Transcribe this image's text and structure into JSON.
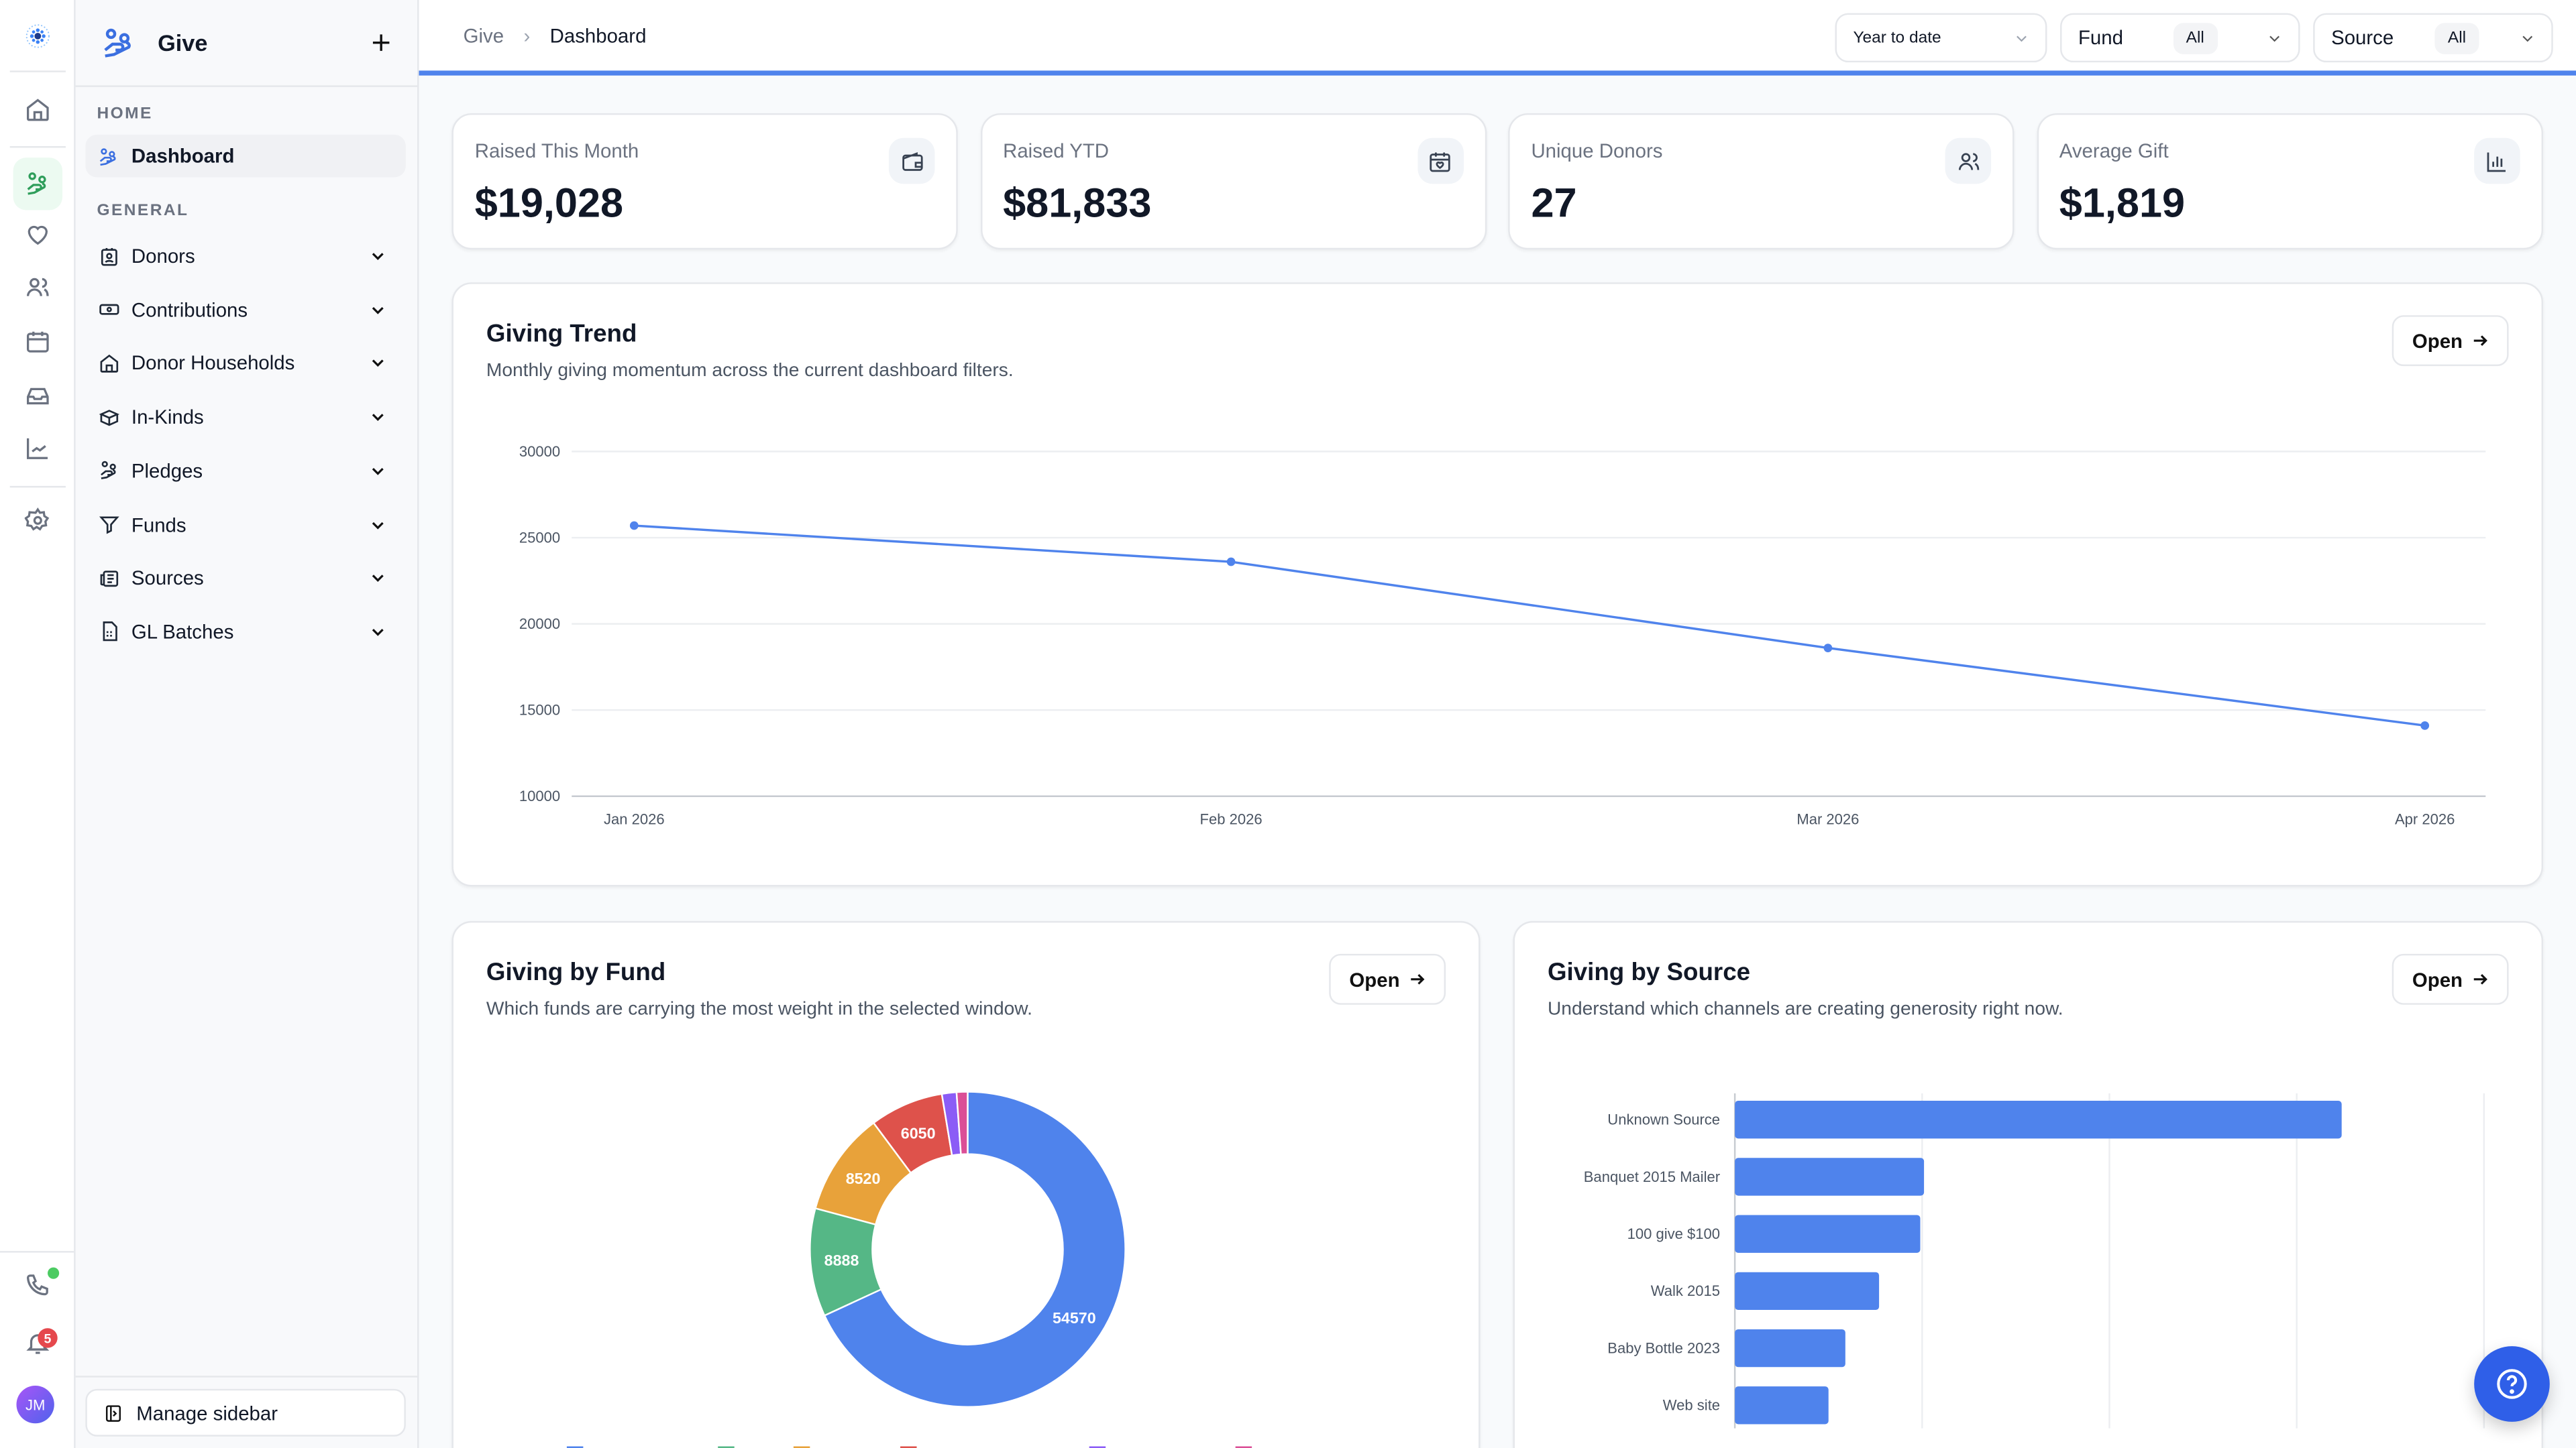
{
  "app": {
    "title": "Give",
    "initials": "JM",
    "notification_count": "5"
  },
  "sidebar": {
    "home_section": "HOME",
    "dashboard": "Dashboard",
    "general_section": "GENERAL",
    "items": [
      {
        "label": "Donors",
        "icon": "id-badge-icon"
      },
      {
        "label": "Contributions",
        "icon": "banknote-icon"
      },
      {
        "label": "Donor Households",
        "icon": "house-icon"
      },
      {
        "label": "In-Kinds",
        "icon": "box-icon"
      },
      {
        "label": "Pledges",
        "icon": "hand-heart-icon"
      },
      {
        "label": "Funds",
        "icon": "filter-icon"
      },
      {
        "label": "Sources",
        "icon": "newspaper-icon"
      },
      {
        "label": "GL Batches",
        "icon": "file-spreadsheet-icon"
      }
    ],
    "manage": "Manage sidebar"
  },
  "header": {
    "breadcrumb": [
      "Give",
      "Dashboard"
    ],
    "filters": {
      "period": "Year to date",
      "fund_label": "Fund",
      "fund_value": "All",
      "source_label": "Source",
      "source_value": "All"
    }
  },
  "kpis": [
    {
      "label": "Raised This Month",
      "value": "$19,028",
      "icon": "wallet-icon"
    },
    {
      "label": "Raised YTD",
      "value": "$81,833",
      "icon": "calendar-heart-icon"
    },
    {
      "label": "Unique Donors",
      "value": "27",
      "icon": "users-icon"
    },
    {
      "label": "Average Gift",
      "value": "$1,819",
      "icon": "bar-chart-icon"
    }
  ],
  "trend": {
    "title": "Giving Trend",
    "subtitle": "Monthly giving momentum across the current dashboard filters.",
    "open": "Open"
  },
  "fund": {
    "title": "Giving by Fund",
    "subtitle": "Which funds are carrying the most weight in the selected window.",
    "open": "Open"
  },
  "source": {
    "title": "Giving by Source",
    "subtitle": "Understand which channels are creating generosity right now.",
    "open": "Open"
  },
  "colors": {
    "accent": "#4f83ec",
    "green": "#55b786",
    "orange": "#e8a23a",
    "red": "#de524b",
    "purple": "#8b5cf6",
    "pink": "#db4f96"
  },
  "chart_data": [
    {
      "type": "line",
      "categories": [
        "Jan 2026",
        "Feb 2026",
        "Mar 2026",
        "Apr 2026"
      ],
      "values": [
        25700,
        23600,
        18600,
        14100
      ],
      "ylim": [
        10000,
        30000
      ],
      "yticks": [
        30000,
        25000,
        20000,
        15000,
        10000
      ],
      "grid": true
    },
    {
      "type": "pie",
      "donut": true,
      "values": [
        54570,
        8888,
        8520,
        6050,
        1200,
        900
      ],
      "labels": [
        "54570",
        "8888",
        "8520",
        "6050",
        "",
        ""
      ],
      "colors": [
        "#4f83ec",
        "#55b786",
        "#e8a23a",
        "#de524b",
        "#8b5cf6",
        "#db4f96"
      ]
    },
    {
      "type": "bar",
      "orientation": "horizontal",
      "categories": [
        "Unknown Source",
        "Banquet 2015 Mailer",
        "100 give $100",
        "Walk 2015",
        "Baby Bottle 2023",
        "Web site"
      ],
      "values": [
        32400,
        10100,
        9900,
        7700,
        5900,
        5000
      ],
      "xlim": [
        0,
        40000
      ],
      "grid": true
    }
  ]
}
